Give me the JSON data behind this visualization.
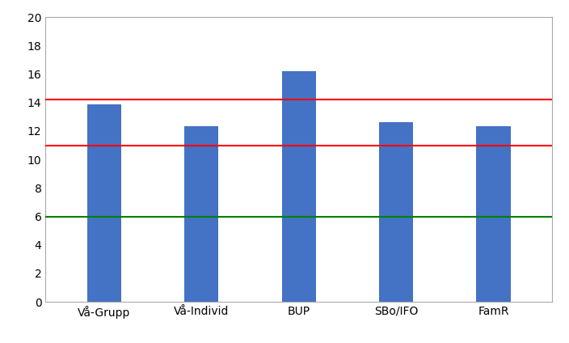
{
  "categories": [
    "Vå-Grupp",
    "Vå-Individ",
    "BUP",
    "SBo/IFO",
    "FamR"
  ],
  "values": [
    13.9,
    12.35,
    16.2,
    12.6,
    12.35
  ],
  "bar_color": "#4472C4",
  "red_lines": [
    14.2,
    11.0
  ],
  "green_line": 6.0,
  "ylim": [
    0,
    20
  ],
  "yticks": [
    0,
    2,
    4,
    6,
    8,
    10,
    12,
    14,
    16,
    18,
    20
  ],
  "red_line_color": "#FF0000",
  "green_line_color": "#008000",
  "background_color": "#FFFFFF",
  "bar_width": 0.35,
  "tick_fontsize": 10,
  "label_fontsize": 10,
  "border_color": "#AAAAAA",
  "border_linewidth": 0.8
}
